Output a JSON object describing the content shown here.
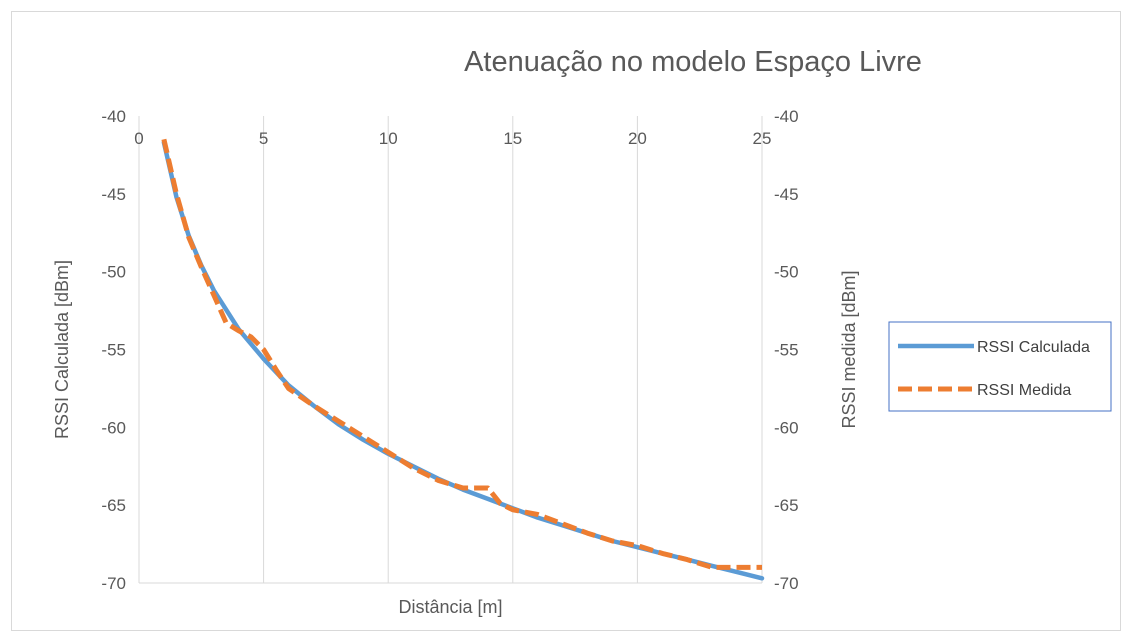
{
  "chart_data": {
    "type": "line",
    "title": "Atenuação no modelo Espaço Livre",
    "xlabel": "Distância [m]",
    "ylabel": "RSSI Calculada [dBm]",
    "ylabel_right": "RSSI medida [dBm]",
    "xlim": [
      0,
      25
    ],
    "ylim": [
      -70,
      -40
    ],
    "y2lim": [
      -70,
      -40
    ],
    "x_ticks": [
      "0",
      "5",
      "10",
      "15",
      "20",
      "25"
    ],
    "y_ticks": [
      "-40",
      "-45",
      "-50",
      "-55",
      "-60",
      "-65",
      "-70"
    ],
    "y2_ticks": [
      "-40",
      "-45",
      "-50",
      "-55",
      "-60",
      "-65",
      "-70"
    ],
    "grid": "vertical",
    "legend_position": "right",
    "series": [
      {
        "name": "RSSI Calculada",
        "color": "#5b9bd5",
        "style": "solid",
        "axis": "left",
        "x": [
          1,
          1.5,
          2,
          2.5,
          3,
          4,
          5,
          6,
          7,
          8,
          9,
          10,
          11,
          12,
          13,
          14,
          15,
          16,
          17,
          18,
          19,
          20,
          21,
          22,
          23,
          24,
          25
        ],
        "y": [
          -41.7,
          -45.2,
          -47.7,
          -49.6,
          -51.2,
          -53.7,
          -55.6,
          -57.3,
          -58.6,
          -59.8,
          -60.8,
          -61.7,
          -62.5,
          -63.3,
          -64.0,
          -64.6,
          -65.2,
          -65.8,
          -66.3,
          -66.8,
          -67.3,
          -67.7,
          -68.1,
          -68.5,
          -68.9,
          -69.3,
          -69.7
        ]
      },
      {
        "name": "RSSI Medida",
        "color": "#ed7d31",
        "style": "dashed",
        "axis": "right",
        "x": [
          1,
          1.5,
          2,
          2.5,
          3,
          3.5,
          4,
          4.5,
          5,
          5.5,
          6,
          7,
          8,
          9,
          10,
          11,
          12,
          13,
          14,
          14.5,
          15,
          16,
          17,
          18,
          19,
          20,
          21,
          22,
          23,
          24,
          25
        ],
        "y": [
          -41.5,
          -45.0,
          -47.8,
          -49.7,
          -51.5,
          -53.3,
          -53.8,
          -54.2,
          -55.0,
          -56.3,
          -57.5,
          -58.6,
          -59.6,
          -60.6,
          -61.6,
          -62.6,
          -63.4,
          -63.9,
          -63.9,
          -64.9,
          -65.3,
          -65.6,
          -66.2,
          -66.8,
          -67.3,
          -67.6,
          -68.1,
          -68.5,
          -69.0,
          -69.0,
          -69.0
        ]
      }
    ]
  }
}
